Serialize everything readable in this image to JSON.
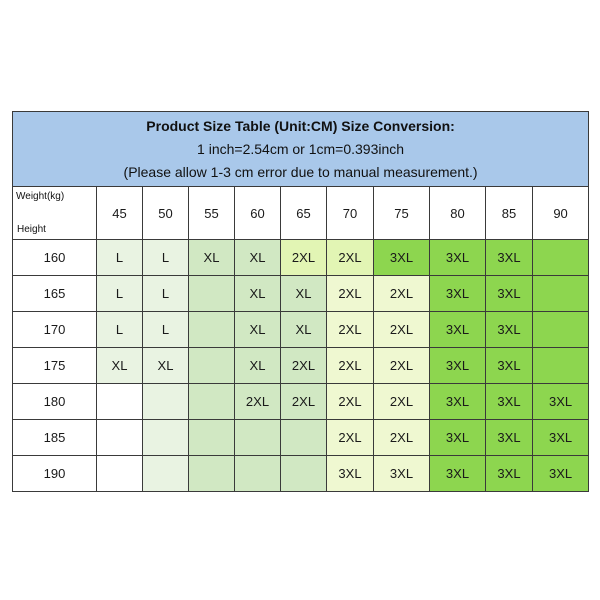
{
  "title": {
    "line1": "Product Size Table (Unit:CM) Size Conversion:",
    "line2": "1 inch=2.54cm or 1cm=0.393inch",
    "line3": "(Please allow 1-3 cm error due to manual measurement.)"
  },
  "corner": {
    "weight_label": "Weight(kg)",
    "height_label": "Height"
  },
  "weights": [
    "45",
    "50",
    "55",
    "60",
    "65",
    "70",
    "75",
    "80",
    "85",
    "90"
  ],
  "colors": {
    "header_bg": "#a9c8ea",
    "c0": "#ffffff",
    "c1": "#e9f3e2",
    "c2": "#d1e8c3",
    "c3": "#eff8d1",
    "c4": "#e2f5b4",
    "c5": "#8dd64f"
  },
  "rows": [
    {
      "height": "160",
      "cells": [
        "L",
        "L",
        "XL",
        "XL",
        "2XL",
        "2XL",
        "3XL",
        "3XL",
        "3XL",
        ""
      ],
      "shades": [
        1,
        1,
        2,
        2,
        4,
        4,
        5,
        5,
        5,
        5
      ]
    },
    {
      "height": "165",
      "cells": [
        "L",
        "L",
        "",
        "XL",
        "XL",
        "2XL",
        "2XL",
        "3XL",
        "3XL",
        ""
      ],
      "shades": [
        1,
        1,
        2,
        2,
        2,
        3,
        3,
        5,
        5,
        5
      ]
    },
    {
      "height": "170",
      "cells": [
        "L",
        "L",
        "",
        "XL",
        "XL",
        "2XL",
        "2XL",
        "3XL",
        "3XL",
        ""
      ],
      "shades": [
        1,
        1,
        2,
        2,
        2,
        3,
        3,
        5,
        5,
        5
      ]
    },
    {
      "height": "175",
      "cells": [
        "XL",
        "XL",
        "",
        "XL",
        "2XL",
        "2XL",
        "2XL",
        "3XL",
        "3XL",
        ""
      ],
      "shades": [
        1,
        1,
        2,
        2,
        2,
        3,
        3,
        5,
        5,
        5
      ]
    },
    {
      "height": "180",
      "cells": [
        "",
        "",
        "",
        "2XL",
        "2XL",
        "2XL",
        "2XL",
        "3XL",
        "3XL",
        "3XL"
      ],
      "shades": [
        0,
        1,
        2,
        2,
        2,
        3,
        3,
        5,
        5,
        5
      ]
    },
    {
      "height": "185",
      "cells": [
        "",
        "",
        "",
        "",
        "",
        "2XL",
        "2XL",
        "3XL",
        "3XL",
        "3XL"
      ],
      "shades": [
        0,
        1,
        2,
        2,
        2,
        3,
        3,
        5,
        5,
        5
      ]
    },
    {
      "height": "190",
      "cells": [
        "",
        "",
        "",
        "",
        "",
        "3XL",
        "3XL",
        "3XL",
        "3XL",
        "3XL"
      ],
      "shades": [
        0,
        1,
        2,
        2,
        2,
        3,
        3,
        5,
        5,
        5
      ]
    }
  ]
}
